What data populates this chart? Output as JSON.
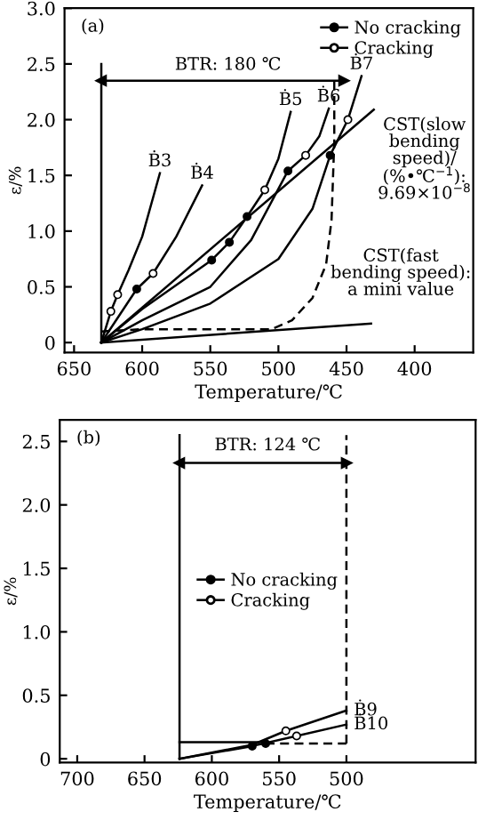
{
  "chart_data": [
    {
      "type": "line",
      "xlabel": "Temperature/℃",
      "ylabel": "ε/%",
      "xlim": [
        657,
        357
      ],
      "ylim": [
        -0.09,
        3.0
      ],
      "xticks": [
        650,
        600,
        550,
        500,
        450,
        400
      ],
      "yticks": [
        {
          "value": 0,
          "label": "0"
        },
        0.5,
        {
          "value": 1,
          "label": "1.0"
        },
        1.5,
        {
          "value": 2,
          "label": "2.0"
        },
        2.5,
        {
          "value": 3,
          "label": "3.0"
        }
      ],
      "legend": "top right",
      "grid": false,
      "annotations": [
        "(a)",
        "BTR: 180 ℃",
        "CST(slow\nbending\nspeed)/\n(%•℃$^{−1}$):\n9.69×10$^{−8}$",
        "CST(fast\nbending speed):\na mini value"
      ],
      "series": [
        {
          "type": "line",
          "color": "#000000",
          "line_style": "solid",
          "marker": "triangle",
          "x": [
            630,
            452
          ],
          "values": [
            2.35,
            2.35
          ]
        },
        {
          "type": "line",
          "color": "#000000",
          "line_style": "solid",
          "x": [
            630,
            630
          ],
          "values": [
            0,
            2.5
          ]
        },
        {
          "type": "line",
          "color": "#000000",
          "line_style": "dashed",
          "x": [
            630,
            600,
            505,
            490,
            475,
            465,
            461,
            459,
            459
          ],
          "values": [
            0.1,
            0.12,
            0.12,
            0.2,
            0.4,
            0.7,
            1.1,
            1.8,
            2.35
          ]
        },
        {
          "type": "line",
          "color": "#000000",
          "line_style": "solid",
          "x": [
            630,
            432
          ],
          "values": [
            0,
            0.17
          ]
        },
        {
          "type": "line",
          "color": "#000000",
          "line_style": "solid",
          "x": [
            630,
            430
          ],
          "values": [
            0,
            2.09
          ]
        },
        {
          "type": "line",
          "name": "Ḃ3",
          "color": "#000000",
          "line_style": "solid",
          "x": [
            630,
            623,
            618,
            610,
            600,
            587
          ],
          "values": [
            0,
            0.28,
            0.43,
            0.65,
            0.95,
            1.52
          ]
        },
        {
          "type": "line",
          "name": "Ḃ4",
          "color": "#000000",
          "line_style": "solid",
          "x": [
            630,
            604,
            592,
            575,
            556
          ],
          "values": [
            0,
            0.48,
            0.62,
            0.95,
            1.41
          ]
        },
        {
          "type": "line",
          "name": "Ḃ5",
          "color": "#000000",
          "line_style": "solid",
          "x": [
            630,
            600,
            549,
            536,
            523,
            510,
            500,
            491
          ],
          "values": [
            0,
            0.3,
            0.74,
            0.9,
            1.13,
            1.37,
            1.65,
            2.07
          ]
        },
        {
          "type": "line",
          "name": "Ḃ6",
          "color": "#000000",
          "line_style": "solid",
          "x": [
            630,
            600,
            550,
            520,
            493,
            480,
            470,
            463
          ],
          "values": [
            0,
            0.2,
            0.5,
            0.92,
            1.54,
            1.68,
            1.85,
            2.1
          ]
        },
        {
          "type": "line",
          "name": "Ḃ7",
          "color": "#000000",
          "line_style": "solid",
          "x": [
            630,
            600,
            550,
            500,
            475,
            462,
            449,
            439
          ],
          "values": [
            0,
            0.12,
            0.35,
            0.75,
            1.2,
            1.68,
            2.0,
            2.39
          ]
        },
        {
          "type": "scatter",
          "name": "No cracking",
          "color": "#000000",
          "marker": "circle",
          "x": [
            604,
            549,
            536,
            523,
            493,
            462
          ],
          "values": [
            0.48,
            0.74,
            0.9,
            1.13,
            1.54,
            1.68
          ]
        },
        {
          "type": "scatter",
          "name": "Cracking",
          "color": "#ffffff",
          "marker": "circle",
          "x": [
            623,
            618,
            592,
            510,
            480,
            449
          ],
          "values": [
            0.28,
            0.43,
            0.62,
            1.37,
            1.68,
            2.0
          ]
        }
      ]
    },
    {
      "type": "line",
      "xlabel": "Temperature/℃",
      "ylabel": "ε/%",
      "xlim": [
        713,
        404
      ],
      "ylim": [
        -0.03,
        2.67
      ],
      "xticks": [
        700,
        650,
        600,
        550,
        500
      ],
      "yticks": [
        {
          "value": 0,
          "label": "0"
        },
        0.5,
        {
          "value": 1,
          "label": "1.0"
        },
        1.5,
        {
          "value": 2,
          "label": "2.0"
        },
        2.5
      ],
      "legend": "center",
      "grid": false,
      "annotations": [
        "(b)",
        "BTR: 124 ℃"
      ],
      "series": [
        {
          "type": "line",
          "color": "#000000",
          "line_style": "solid",
          "marker": "triangle",
          "x": [
            624,
            500
          ],
          "values": [
            2.33,
            2.33
          ]
        },
        {
          "type": "line",
          "color": "#000000",
          "line_style": "solid",
          "x": [
            624,
            624
          ],
          "values": [
            0,
            2.55
          ]
        },
        {
          "type": "line",
          "color": "#000000",
          "line_style": "dashed",
          "x": [
            500,
            500
          ],
          "values": [
            0.12,
            2.55
          ]
        },
        {
          "type": "line",
          "color": "#000000",
          "line_style": "solid",
          "x": [
            624,
            560
          ],
          "values": [
            0.13,
            0.13
          ]
        },
        {
          "type": "line",
          "color": "#000000",
          "line_style": "dashed",
          "x": [
            560,
            500
          ],
          "values": [
            0.12,
            0.12
          ]
        },
        {
          "type": "line",
          "name": "Ḃ9",
          "color": "#000000",
          "line_style": "solid",
          "x": [
            624,
            570,
            545,
            500
          ],
          "values": [
            0,
            0.11,
            0.22,
            0.38
          ]
        },
        {
          "type": "line",
          "name": "Ḃ10",
          "color": "#000000",
          "line_style": "solid",
          "x": [
            624,
            570,
            537,
            500
          ],
          "values": [
            0,
            0.1,
            0.18,
            0.27
          ]
        },
        {
          "type": "scatter",
          "name": "No cracking",
          "color": "#000000",
          "marker": "circle",
          "x": [
            570,
            560
          ],
          "values": [
            0.1,
            0.12
          ]
        },
        {
          "type": "scatter",
          "name": "Cracking",
          "color": "#ffffff",
          "marker": "circle",
          "x": [
            545,
            537
          ],
          "values": [
            0.22,
            0.18
          ]
        }
      ]
    }
  ]
}
